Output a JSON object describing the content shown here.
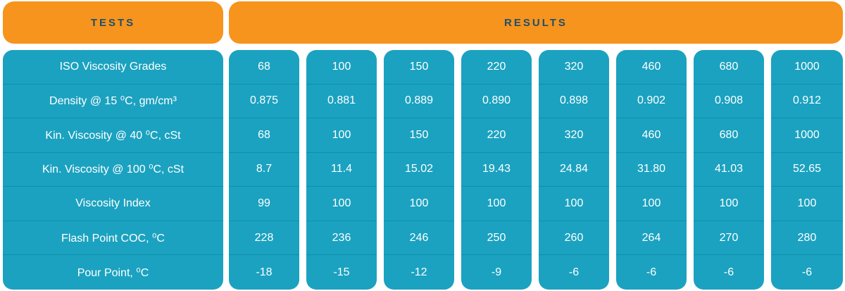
{
  "header": {
    "tests": "TESTS",
    "results": "RESULTS"
  },
  "tests": [
    "ISO Viscosity Grades",
    "Density @ 15 ⁰C, gm/cm³",
    "Kin. Viscosity @ 40 ⁰C, cSt",
    "Kin. Viscosity @ 100 ⁰C, cSt",
    "Viscosity Index",
    "Flash Point COC, ⁰C",
    "Pour Point, ⁰C"
  ],
  "grades": [
    {
      "values": [
        "68",
        "0.875",
        "68",
        "8.7",
        "99",
        "228",
        "-18"
      ]
    },
    {
      "values": [
        "100",
        "0.881",
        "100",
        "11.4",
        "100",
        "236",
        "-15"
      ]
    },
    {
      "values": [
        "150",
        "0.889",
        "150",
        "15.02",
        "100",
        "246",
        "-12"
      ]
    },
    {
      "values": [
        "220",
        "0.890",
        "220",
        "19.43",
        "100",
        "250",
        "-9"
      ]
    },
    {
      "values": [
        "320",
        "0.898",
        "320",
        "24.84",
        "100",
        "260",
        "-6"
      ]
    },
    {
      "values": [
        "460",
        "0.902",
        "460",
        "31.80",
        "100",
        "264",
        "-6"
      ]
    },
    {
      "values": [
        "680",
        "0.908",
        "680",
        "41.03",
        "100",
        "270",
        "-6"
      ]
    },
    {
      "values": [
        "1000",
        "0.912",
        "1000",
        "52.65",
        "100",
        "280",
        "-6"
      ]
    }
  ],
  "colors": {
    "header": "#f7941d",
    "header_text": "#1d4f6e",
    "cell": "#1ba2c0",
    "cell_text": "#ffffff"
  }
}
